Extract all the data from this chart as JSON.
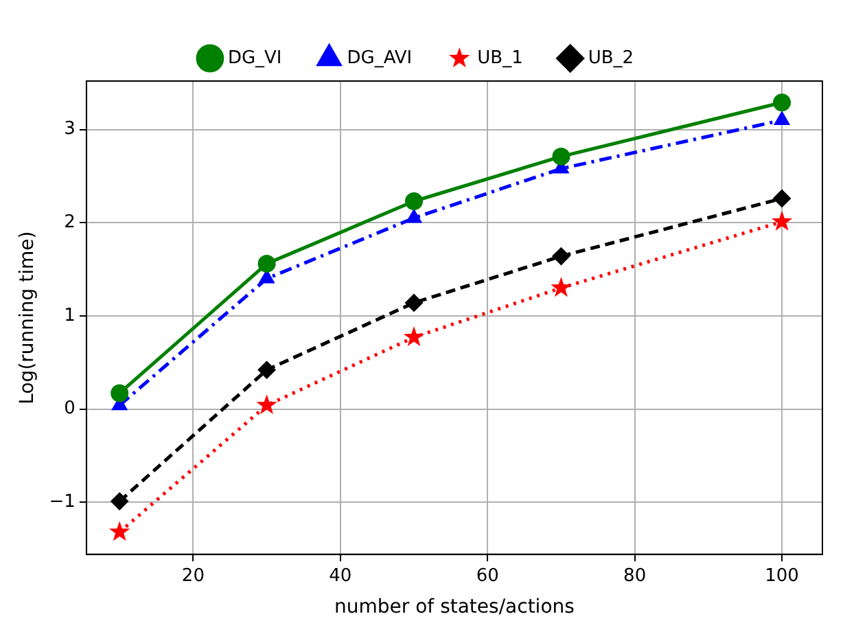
{
  "chart_data": {
    "type": "line",
    "xlabel": "number of states/actions",
    "ylabel": "Log(running time)",
    "xlim": [
      5.5,
      105.5
    ],
    "xticks": [
      20,
      40,
      60,
      80,
      100
    ],
    "ylim": [
      -1.56,
      3.52
    ],
    "yticks": [
      {
        "value": -1,
        "label": "−1"
      },
      0,
      1,
      2,
      3
    ],
    "grid": true,
    "legend": "top",
    "series": [
      {
        "name": "DG_VI",
        "color": "#008000",
        "marker": "circle",
        "line_style": "solid",
        "x": [
          10,
          30,
          50,
          70,
          100
        ],
        "values": [
          0.17,
          1.56,
          2.23,
          2.71,
          3.29
        ]
      },
      {
        "name": "DG_AVI",
        "color": "#0000ff",
        "marker": "triangle",
        "line_style": "dashdot",
        "x": [
          10,
          30,
          50,
          70,
          100
        ],
        "values": [
          0.04,
          1.4,
          2.05,
          2.58,
          3.1
        ]
      },
      {
        "name": "UB_1",
        "color": "#ff0000",
        "marker": "star",
        "line_style": "dotted",
        "x": [
          10,
          30,
          50,
          70,
          100
        ],
        "values": [
          -1.32,
          0.04,
          0.77,
          1.3,
          2.01
        ]
      },
      {
        "name": "UB_2",
        "color": "#000000",
        "marker": "diamond",
        "line_style": "dashed",
        "x": [
          10,
          30,
          50,
          70,
          100
        ],
        "values": [
          -0.99,
          0.42,
          1.14,
          1.64,
          2.26
        ]
      }
    ]
  }
}
